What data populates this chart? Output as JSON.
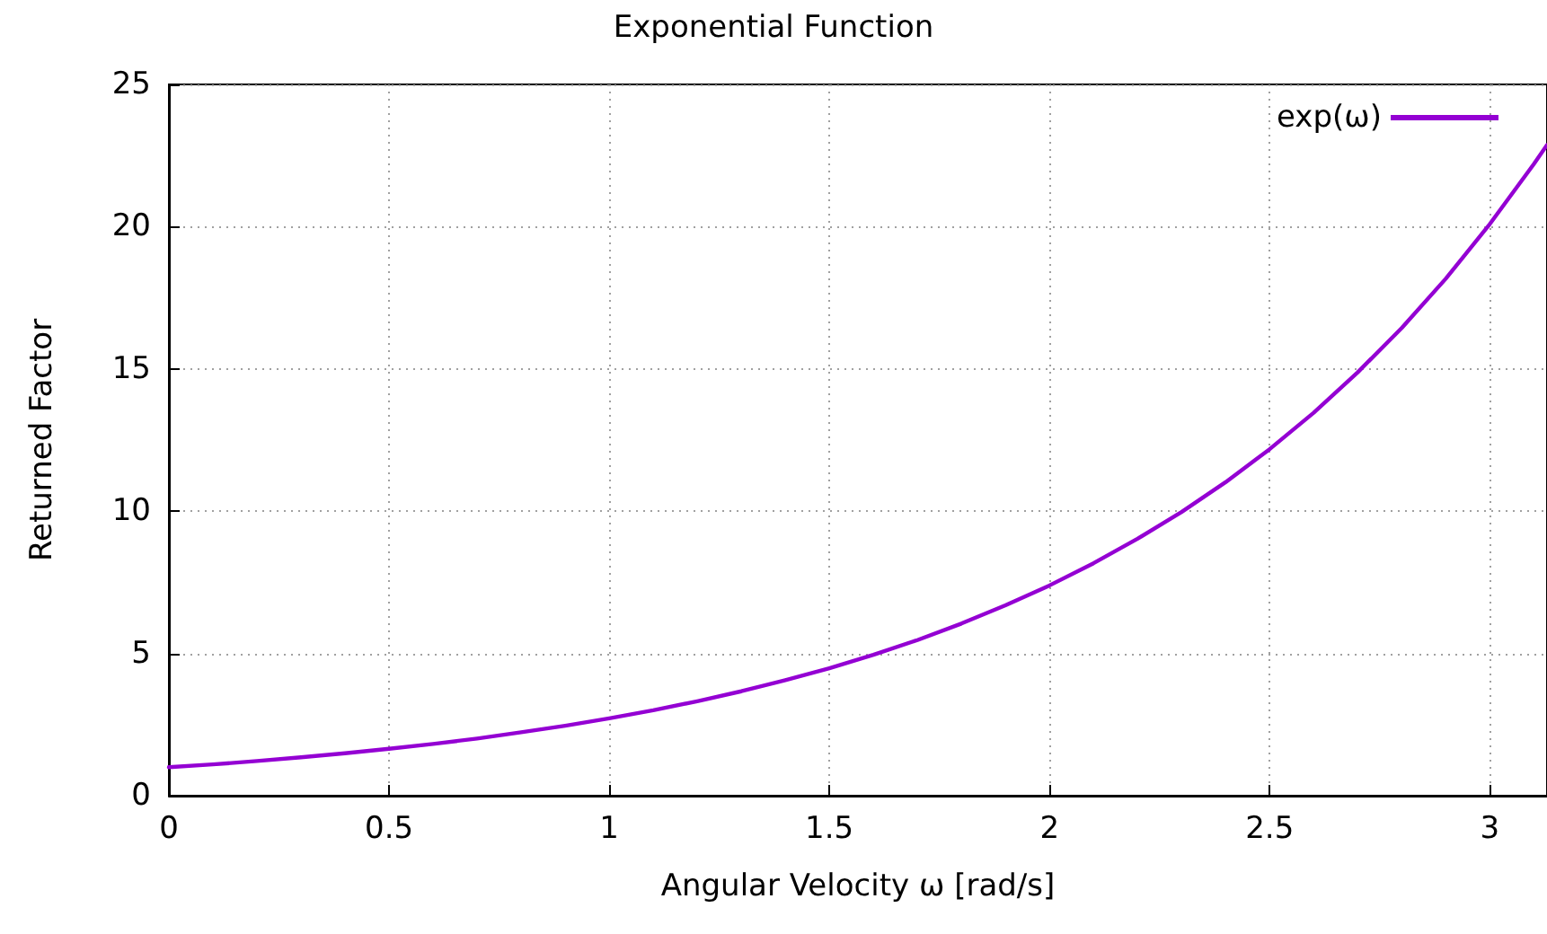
{
  "chart_data": {
    "type": "line",
    "title": "Exponential Function",
    "xlabel": "Angular Velocity ω [rad/s]",
    "ylabel": "Returned Factor",
    "x": [
      0,
      0.1,
      0.2,
      0.3,
      0.4,
      0.5,
      0.6,
      0.7,
      0.8,
      0.9,
      1,
      1.1,
      1.2,
      1.3,
      1.4,
      1.5,
      1.6,
      1.7,
      1.8,
      1.9,
      2,
      2.1,
      2.2,
      2.3,
      2.4,
      2.5,
      2.6,
      2.7,
      2.8,
      2.9,
      3,
      3.1,
      3.13
    ],
    "series": [
      {
        "name": "exp(ω)",
        "color": "#9400d3",
        "values": [
          1,
          1.1,
          1.22,
          1.35,
          1.49,
          1.65,
          1.82,
          2.01,
          2.23,
          2.46,
          2.72,
          3.0,
          3.32,
          3.67,
          4.06,
          4.48,
          4.95,
          5.47,
          6.05,
          6.69,
          7.39,
          8.17,
          9.03,
          9.97,
          11.02,
          12.18,
          13.46,
          14.88,
          16.44,
          18.17,
          20.09,
          22.2,
          22.87
        ]
      }
    ],
    "xlim": [
      0,
      3.13
    ],
    "xticks": [
      0,
      0.5,
      1,
      1.5,
      2,
      2.5,
      3
    ],
    "ylim": [
      0,
      25
    ],
    "yticks": [
      0,
      5,
      10,
      15,
      20,
      25
    ],
    "grid": true,
    "legend": "top right",
    "marker": "none",
    "line_style": "solid"
  }
}
